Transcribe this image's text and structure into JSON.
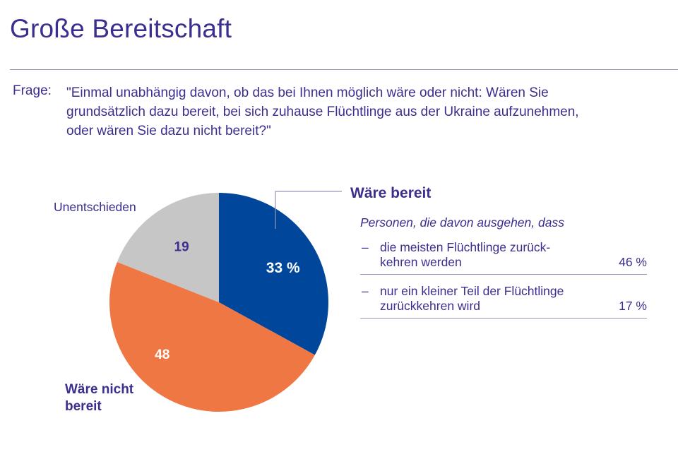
{
  "page": {
    "title": "Große Bereitschaft",
    "question_label": "Frage:",
    "question_lines": [
      "\"Einmal unabhängig davon, ob das bei Ihnen möglich wäre oder nicht: Wären Sie",
      "grundsätzlich dazu bereit, bei sich zuhause Flüchtlinge aus der Ukraine aufzunehmen,",
      "oder wären Sie dazu nicht bereit?\""
    ]
  },
  "chart_data": {
    "type": "pie",
    "unit": "%",
    "slices": [
      {
        "label": "Wäre bereit",
        "value": 33,
        "value_label": "33 %",
        "color": "#00479b"
      },
      {
        "label": "Wäre nicht bereit",
        "value": 48,
        "value_label": "48",
        "color": "#ef7744"
      },
      {
        "label": "Unentschieden",
        "value": 19,
        "value_label": "19",
        "color": "#c6c6c6"
      }
    ],
    "label_colors": {
      "dark": "#3a2f8f",
      "light": "#ffffff"
    }
  },
  "breakdown": {
    "intro": "Personen, die davon ausgehen, dass",
    "items": [
      {
        "dash": "–",
        "line1": "die meisten Flüchtlinge zurück-",
        "line2": "kehren werden",
        "value": "46 %"
      },
      {
        "dash": "–",
        "line1": "nur ein kleiner Teil der Flüchtlinge",
        "line2": "zurückkehren wird",
        "value": "17 %"
      }
    ]
  }
}
